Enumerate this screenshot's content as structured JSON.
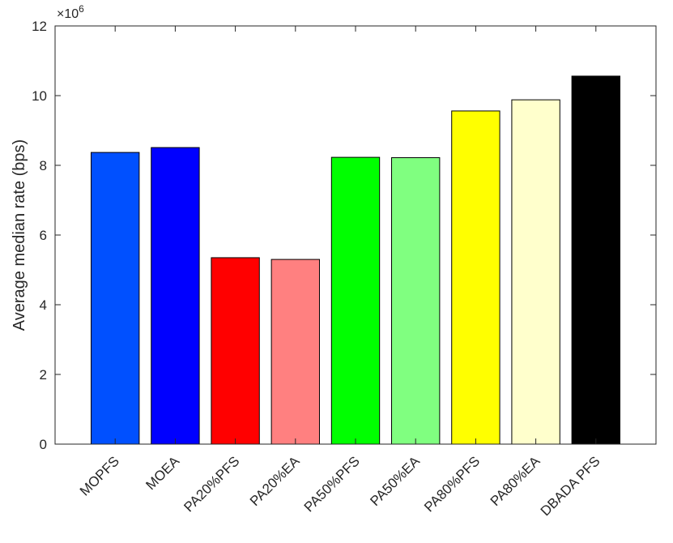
{
  "chart_data": {
    "type": "bar",
    "y_label": "Average median rate (bps)",
    "y_multiplier_base": "×10",
    "y_multiplier_exponent": "6",
    "categories": [
      "MOPFS",
      "MOEA",
      "PA20%PFS",
      "PA20%EA",
      "PA50%PFS",
      "PA50%EA",
      "PA80%PFS",
      "PA80%EA",
      "DBADA PFS"
    ],
    "values": [
      8.37,
      8.51,
      5.35,
      5.3,
      8.23,
      8.22,
      9.56,
      9.88,
      10.56
    ],
    "colors": [
      "#0050ff",
      "#0000ff",
      "#ff0000",
      "#ff8080",
      "#00ff00",
      "#80ff80",
      "#ffff00",
      "#ffffcc",
      "#000000"
    ],
    "ylim": [
      0,
      12
    ],
    "yticks": [
      0,
      2,
      4,
      6,
      8,
      10,
      12
    ],
    "grid": false
  }
}
